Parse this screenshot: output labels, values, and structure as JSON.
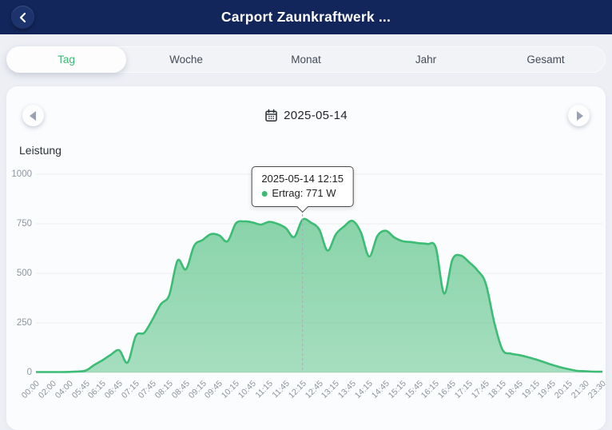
{
  "header": {
    "title": "Carport Zaunkraftwerk ...",
    "back_icon": "chevron-left-icon"
  },
  "tabs": {
    "items": [
      {
        "label": "Tag",
        "active": true
      },
      {
        "label": "Woche",
        "active": false
      },
      {
        "label": "Monat",
        "active": false
      },
      {
        "label": "Jahr",
        "active": false
      },
      {
        "label": "Gesamt",
        "active": false
      }
    ],
    "active_color": "#3dba74"
  },
  "date_nav": {
    "date": "2025-05-14",
    "prev_icon": "arrow-left-icon",
    "next_icon": "arrow-right-icon",
    "calendar_icon": "calendar-icon"
  },
  "chart_data": {
    "type": "area",
    "title": "Leistung",
    "unit": "W",
    "ylim": [
      0,
      1000
    ],
    "yticks": [
      0,
      250,
      500,
      750,
      1000
    ],
    "grid": true,
    "smooth": true,
    "x_labels": [
      "00:00",
      "02:00",
      "04:00",
      "05:45",
      "06:15",
      "06:45",
      "07:15",
      "07:45",
      "08:15",
      "08:45",
      "09:15",
      "09:45",
      "10:15",
      "10:45",
      "11:15",
      "11:45",
      "12:15",
      "12:45",
      "13:15",
      "13:45",
      "14:15",
      "14:45",
      "15:15",
      "15:45",
      "16:15",
      "16:45",
      "17:15",
      "17:45",
      "18:15",
      "18:45",
      "19:15",
      "19:45",
      "20:15",
      "21:30",
      "23:30"
    ],
    "series": [
      {
        "name": "Ertrag",
        "unit": "W",
        "points": [
          [
            "00:00",
            2
          ],
          [
            "01:00",
            2
          ],
          [
            "02:00",
            2
          ],
          [
            "03:00",
            2
          ],
          [
            "04:00",
            3
          ],
          [
            "05:00",
            5
          ],
          [
            "05:45",
            10
          ],
          [
            "06:00",
            38
          ],
          [
            "06:15",
            62
          ],
          [
            "06:30",
            90
          ],
          [
            "06:45",
            112
          ],
          [
            "07:00",
            50
          ],
          [
            "07:15",
            185
          ],
          [
            "07:30",
            200
          ],
          [
            "07:45",
            268
          ],
          [
            "08:00",
            345
          ],
          [
            "08:15",
            390
          ],
          [
            "08:30",
            565
          ],
          [
            "08:45",
            520
          ],
          [
            "09:00",
            640
          ],
          [
            "09:15",
            668
          ],
          [
            "09:30",
            698
          ],
          [
            "09:45",
            692
          ],
          [
            "10:00",
            662
          ],
          [
            "10:15",
            752
          ],
          [
            "10:30",
            762
          ],
          [
            "10:45",
            757
          ],
          [
            "11:00",
            746
          ],
          [
            "11:15",
            760
          ],
          [
            "11:30",
            750
          ],
          [
            "11:45",
            728
          ],
          [
            "12:00",
            683
          ],
          [
            "12:15",
            771
          ],
          [
            "12:30",
            756
          ],
          [
            "12:45",
            722
          ],
          [
            "13:00",
            615
          ],
          [
            "13:15",
            697
          ],
          [
            "13:30",
            737
          ],
          [
            "13:45",
            765
          ],
          [
            "14:00",
            708
          ],
          [
            "14:15",
            585
          ],
          [
            "14:30",
            690
          ],
          [
            "14:45",
            715
          ],
          [
            "15:00",
            682
          ],
          [
            "15:15",
            662
          ],
          [
            "15:30",
            658
          ],
          [
            "15:45",
            652
          ],
          [
            "16:00",
            648
          ],
          [
            "16:15",
            630
          ],
          [
            "16:30",
            398
          ],
          [
            "16:45",
            570
          ],
          [
            "17:00",
            590
          ],
          [
            "17:15",
            556
          ],
          [
            "17:30",
            515
          ],
          [
            "17:45",
            448
          ],
          [
            "18:00",
            255
          ],
          [
            "18:15",
            115
          ],
          [
            "18:30",
            95
          ],
          [
            "18:45",
            88
          ],
          [
            "19:00",
            78
          ],
          [
            "19:15",
            66
          ],
          [
            "19:30",
            52
          ],
          [
            "19:45",
            38
          ],
          [
            "20:00",
            26
          ],
          [
            "20:15",
            16
          ],
          [
            "20:45",
            8
          ],
          [
            "21:30",
            6
          ],
          [
            "22:30",
            4
          ],
          [
            "23:30",
            4
          ]
        ]
      }
    ],
    "tooltip": {
      "title": "2025-05-14 12:15",
      "text": "Ertrag: 771 W",
      "point_time": "12:15",
      "value": 771
    }
  },
  "colors": {
    "header_bg": "#13265b",
    "accent_green": "#3dba74",
    "line": "#3cbc74",
    "fill": "#3db971",
    "page_bg": "#edeff5",
    "card_bg": "#fbfcfe",
    "grid": "#ecedf0",
    "axis_text": "#8f959d"
  }
}
